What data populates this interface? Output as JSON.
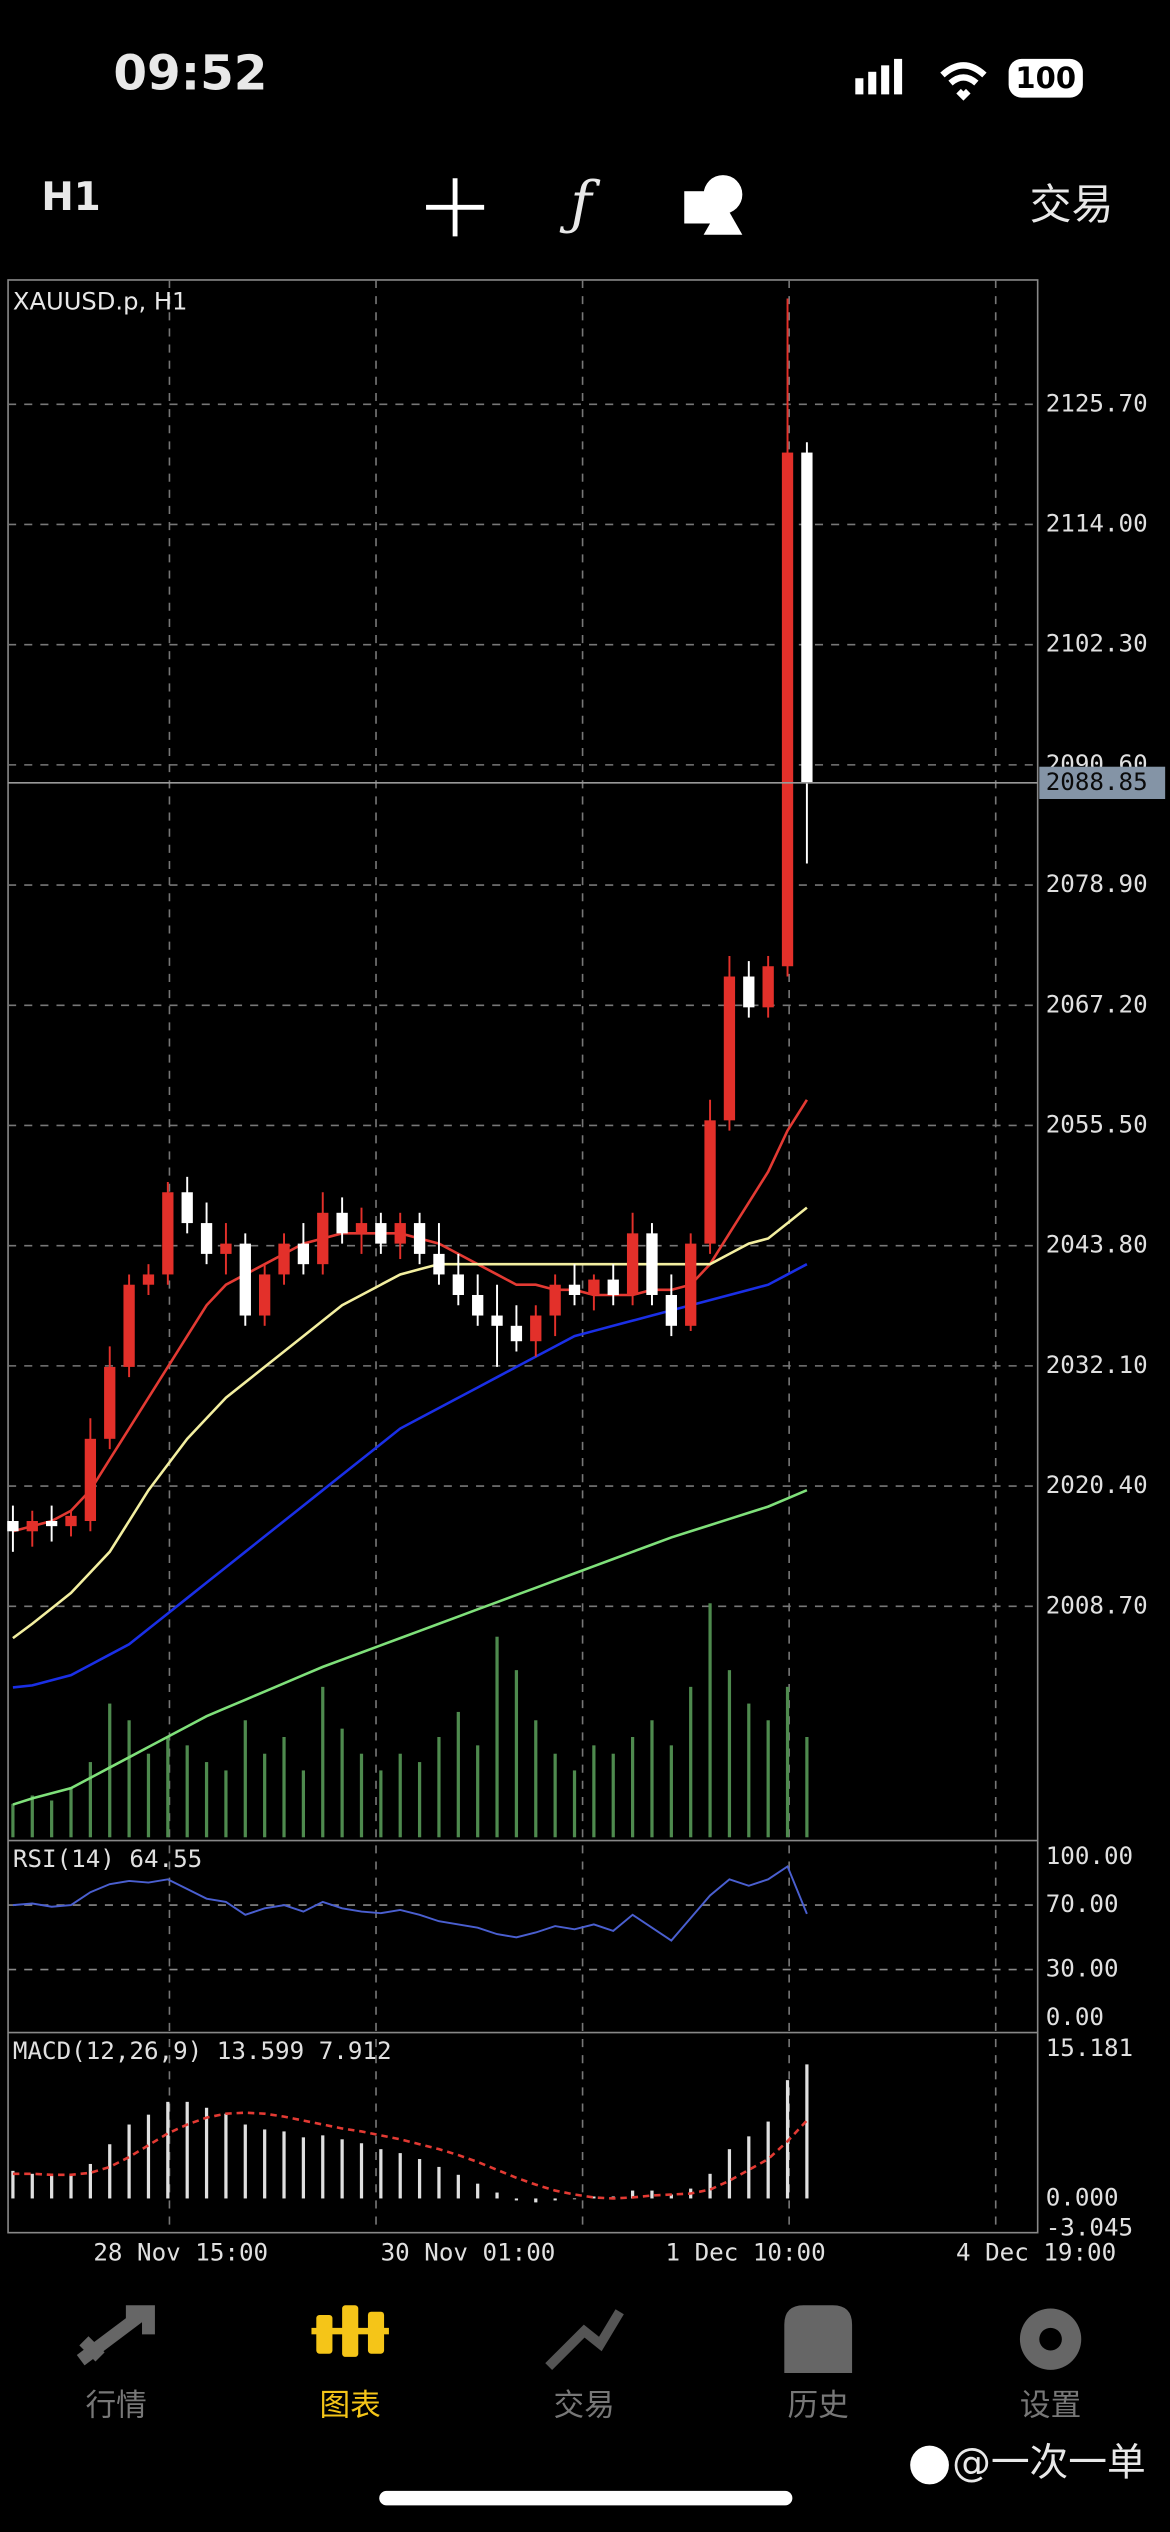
{
  "status_bar": {
    "time": "09:52",
    "battery": "100"
  },
  "toolbar": {
    "timeframe": "H1",
    "trade": "交易"
  },
  "chart_data": {
    "type": "candlestick",
    "title": "XAUUSD.p, H1",
    "ylim": [
      1985.9,
      2137.8
    ],
    "yticks": [
      {
        "value": 2125.7,
        "label": "2125.70"
      },
      {
        "value": 2114,
        "label": "2114.00"
      },
      {
        "value": 2102.3,
        "label": "2102.30"
      },
      {
        "value": 2090.6,
        "label": "2090.60"
      },
      {
        "value": 2078.9,
        "label": "2078.90"
      },
      {
        "value": 2067.2,
        "label": "2067.20"
      },
      {
        "value": 2055.5,
        "label": "2055.50"
      },
      {
        "value": 2043.8,
        "label": "2043.80"
      },
      {
        "value": 2032.1,
        "label": "2032.10"
      },
      {
        "value": 2020.4,
        "label": "2020.40"
      },
      {
        "value": 2008.7,
        "label": "2008.70"
      }
    ],
    "current_price": 2088.85,
    "x_labels": [
      "28 Nov 15:00",
      "30 Nov 01:00",
      "1 Dec 10:00",
      "4 Dec 19:00"
    ],
    "candles": [
      [
        2017,
        2018.5,
        2014,
        2016
      ],
      [
        2016,
        2018,
        2014.5,
        2017
      ],
      [
        2017,
        2018.5,
        2015,
        2016.5
      ],
      [
        2016.5,
        2018,
        2015.5,
        2017.5
      ],
      [
        2017,
        2027,
        2016,
        2025
      ],
      [
        2025,
        2034,
        2024,
        2032
      ],
      [
        2032,
        2041,
        2031,
        2040
      ],
      [
        2040,
        2042,
        2039,
        2041
      ],
      [
        2041,
        2050,
        2040,
        2049
      ],
      [
        2049,
        2050.5,
        2045,
        2046
      ],
      [
        2046,
        2048,
        2042,
        2043
      ],
      [
        2043,
        2046,
        2041,
        2044
      ],
      [
        2044,
        2045,
        2036,
        2037
      ],
      [
        2037,
        2042,
        2036,
        2041
      ],
      [
        2041,
        2045,
        2040,
        2044
      ],
      [
        2044,
        2046,
        2041,
        2042
      ],
      [
        2042,
        2049,
        2041,
        2047
      ],
      [
        2047,
        2048.5,
        2044,
        2045
      ],
      [
        2045,
        2047.5,
        2043,
        2046
      ],
      [
        2046,
        2047,
        2043,
        2044
      ],
      [
        2044,
        2047,
        2042.5,
        2046
      ],
      [
        2046,
        2047,
        2042,
        2043
      ],
      [
        2043,
        2046,
        2040,
        2041
      ],
      [
        2041,
        2043,
        2038,
        2039
      ],
      [
        2039,
        2041,
        2036,
        2037
      ],
      [
        2037,
        2040,
        2032,
        2036
      ],
      [
        2036,
        2038,
        2033.5,
        2034.5
      ],
      [
        2034.5,
        2038,
        2033,
        2037
      ],
      [
        2037,
        2041,
        2035,
        2040
      ],
      [
        2040,
        2042,
        2038,
        2039
      ],
      [
        2039,
        2041,
        2037.5,
        2040.5
      ],
      [
        2040.5,
        2042,
        2038,
        2039
      ],
      [
        2039,
        2047,
        2038,
        2045
      ],
      [
        2045,
        2046,
        2038,
        2039
      ],
      [
        2039,
        2041,
        2035,
        2036
      ],
      [
        2036,
        2045,
        2035.5,
        2044
      ],
      [
        2044,
        2058,
        2043,
        2056
      ],
      [
        2056,
        2072,
        2055,
        2070
      ],
      [
        2070,
        2071.5,
        2066,
        2067
      ],
      [
        2067,
        2072,
        2066,
        2071
      ],
      [
        2071,
        2136,
        2070,
        2121
      ],
      [
        2121,
        2122,
        2081,
        2088.85
      ]
    ],
    "up_color": "#e3302a",
    "down_color": "#ffffff",
    "moving_averages": [
      {
        "color": "#e33a33",
        "values": [
          2016,
          2016.5,
          2017,
          2018,
          2020,
          2023,
          2026,
          2029,
          2032,
          2035,
          2038,
          2040,
          2041,
          2042,
          2043,
          2044,
          2044.5,
          2045,
          2045,
          2045,
          2045,
          2044.5,
          2044,
          2043,
          2042,
          2041,
          2040,
          2040,
          2039.5,
          2039.5,
          2039,
          2039,
          2039,
          2039.5,
          2039.5,
          2040,
          2042,
          2045,
          2048,
          2051,
          2055,
          2058
        ]
      },
      {
        "color": "#f3efa0",
        "values": [
          2005.6,
          2007,
          2008.5,
          2010,
          2012,
          2014,
          2017,
          2020,
          2022.5,
          2025,
          2027,
          2029,
          2030.5,
          2032,
          2033.5,
          2035,
          2036.5,
          2038,
          2039,
          2040,
          2041,
          2041.5,
          2042,
          2042,
          2042,
          2042,
          2042,
          2042,
          2042,
          2042,
          2042,
          2042,
          2042,
          2042,
          2042,
          2042,
          2042,
          2043,
          2044,
          2044.5,
          2046,
          2047.5
        ]
      },
      {
        "color": "#1a2fe6",
        "values": [
          2000.8,
          2001,
          2001.5,
          2002,
          2003,
          2004,
          2005,
          2006.5,
          2008,
          2009.5,
          2011,
          2012.5,
          2014,
          2015.5,
          2017,
          2018.5,
          2020,
          2021.5,
          2023,
          2024.5,
          2026,
          2027,
          2028,
          2029,
          2030,
          2031,
          2032,
          2033,
          2034,
          2035,
          2035.5,
          2036,
          2036.5,
          2037,
          2037.5,
          2038,
          2038.5,
          2039,
          2039.5,
          2040,
          2041,
          2042
        ]
      },
      {
        "color": "#7fe07a",
        "values": [
          1989.4,
          1990,
          1990.5,
          1991,
          1992,
          1993,
          1994,
          1995,
          1996,
          1997,
          1998,
          1998.8,
          1999.6,
          2000.4,
          2001.2,
          2002,
          2002.8,
          2003.5,
          2004.2,
          2004.9,
          2005.6,
          2006.3,
          2007,
          2007.7,
          2008.4,
          2009.1,
          2009.8,
          2010.5,
          2011.2,
          2011.9,
          2012.6,
          2013.3,
          2014,
          2014.7,
          2015.4,
          2016,
          2016.6,
          2017.2,
          2017.8,
          2018.4,
          2019.2,
          2020
        ]
      }
    ],
    "volume_color": "#4e8a4e",
    "volumes": [
      20,
      25,
      22,
      30,
      45,
      80,
      70,
      50,
      60,
      55,
      45,
      40,
      70,
      50,
      60,
      40,
      90,
      65,
      50,
      40,
      50,
      45,
      60,
      75,
      55,
      120,
      100,
      70,
      50,
      40,
      55,
      50,
      60,
      70,
      55,
      90,
      140,
      100,
      80,
      70,
      90,
      60
    ],
    "rsi": {
      "title": "RSI(14) 64.55",
      "color": "#4a5fd0",
      "ylim": [
        -9.1,
        110.1
      ],
      "yticks": [
        {
          "value": 100,
          "label": "100.00"
        },
        {
          "value": 70,
          "label": "70.00"
        },
        {
          "value": 30,
          "label": "30.00"
        },
        {
          "value": 0,
          "label": "0.00"
        }
      ],
      "values": [
        70,
        71,
        69,
        70,
        78,
        83,
        85,
        84,
        86,
        80,
        74,
        72,
        64,
        68,
        70,
        66,
        72,
        68,
        66,
        65,
        67,
        64,
        60,
        58,
        56,
        52,
        50,
        53,
        57,
        55,
        58,
        54,
        64,
        56,
        48,
        62,
        76,
        86,
        82,
        86,
        94,
        64.55
      ]
    },
    "macd": {
      "title": "MACD(12,26,9) 13.599 7.912",
      "hist_color": "#e0e0e0",
      "signal_color": "#e33a33",
      "ylim": [
        -3.47,
        16.83
      ],
      "yticks": [
        15.181,
        {
          "value": 0,
          "label": "0.000"
        },
        -3.045
      ],
      "histogram": [
        2.8,
        2.5,
        2.3,
        2.4,
        3.5,
        5.5,
        7.5,
        8.5,
        9.8,
        9.8,
        9.2,
        8.6,
        7.5,
        7,
        6.8,
        6.2,
        6.4,
        6,
        5.6,
        5,
        4.6,
        4,
        3.2,
        2.4,
        1.5,
        0.6,
        -0.2,
        -0.4,
        -0.2,
        0,
        0.2,
        0.2,
        0.8,
        0.8,
        0.4,
        1,
        2.5,
        5,
        6.3,
        7.8,
        12,
        13.6
      ],
      "signal": [
        2.5,
        2.5,
        2.4,
        2.4,
        2.6,
        3.2,
        4.2,
        5.4,
        6.6,
        7.5,
        8.2,
        8.6,
        8.7,
        8.6,
        8.3,
        7.9,
        7.5,
        7.1,
        6.8,
        6.4,
        6,
        5.5,
        5,
        4.4,
        3.7,
        2.9,
        2.1,
        1.4,
        0.8,
        0.4,
        0.1,
        0,
        0.1,
        0.3,
        0.4,
        0.5,
        0.9,
        1.8,
        2.9,
        4,
        5.8,
        7.912
      ]
    }
  },
  "nav": {
    "items": [
      "行情",
      "图表",
      "交易",
      "历史",
      "设置"
    ],
    "active_color": "#f5c518"
  },
  "watermark": "@一次一单"
}
